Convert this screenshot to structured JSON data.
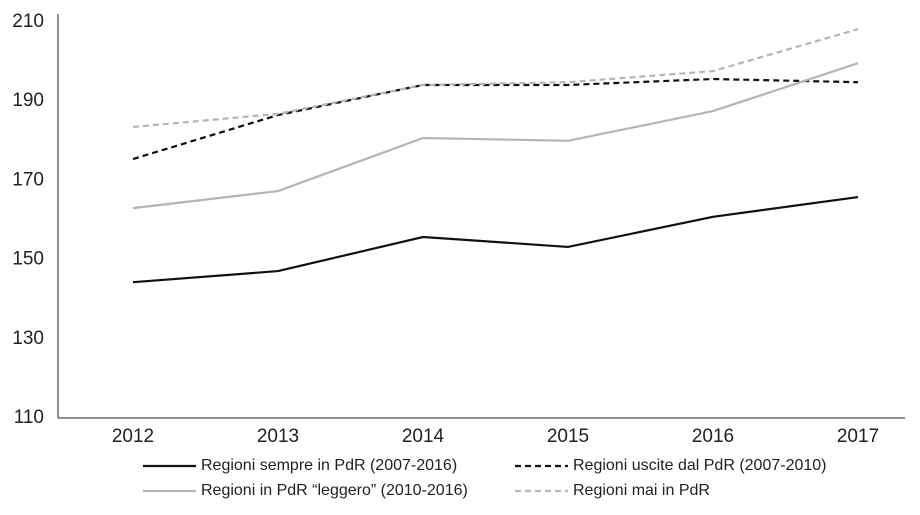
{
  "chart_data": {
    "type": "line",
    "x": [
      "2012",
      "2013",
      "2014",
      "2015",
      "2016",
      "2017"
    ],
    "series": [
      {
        "name": "Regioni sempre in PdR (2007-2016)",
        "color": "#111111",
        "style": "solid",
        "values": [
          144.3,
          147.1,
          155.7,
          153.2,
          160.8,
          165.8
        ]
      },
      {
        "name": "Regioni uscite dal PdR (2007-2010)",
        "color": "#111111",
        "style": "dashed",
        "values": [
          175.4,
          186.5,
          194.1,
          194.1,
          195.6,
          194.8
        ]
      },
      {
        "name": "Regioni in PdR “leggero” (2010-2016)",
        "color": "#b5b5b5",
        "style": "solid",
        "values": [
          163.0,
          167.3,
          180.7,
          180.0,
          187.5,
          199.6
        ]
      },
      {
        "name": "Regioni mai in PdR",
        "color": "#b5b5b5",
        "style": "dashed",
        "values": [
          183.5,
          186.8,
          194.1,
          194.8,
          197.6,
          208.2
        ]
      }
    ],
    "ylim": [
      110,
      210
    ],
    "yticks": [
      110,
      130,
      150,
      170,
      190,
      210
    ],
    "grid": false
  }
}
